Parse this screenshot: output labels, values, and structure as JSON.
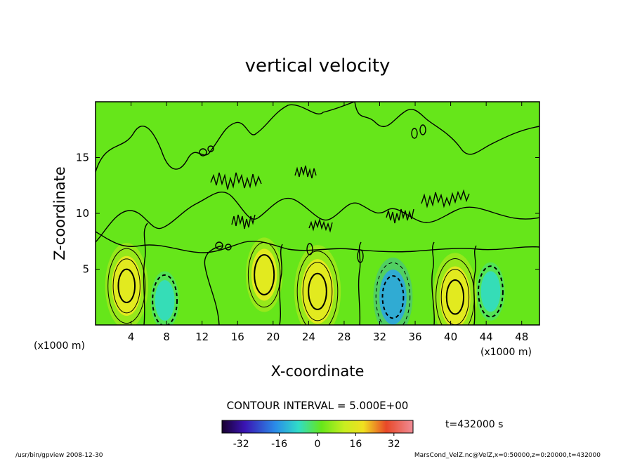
{
  "chart_data": {
    "type": "heatmap",
    "title": "vertical velocity",
    "xlabel": "X-coordinate",
    "ylabel": "Z-coordinate",
    "x_unit_left": "(x1000 m)",
    "x_unit_right": "(x1000 m)",
    "xlim": [
      0,
      50
    ],
    "ylim": [
      0,
      20
    ],
    "x_ticks": [
      4,
      8,
      12,
      16,
      20,
      24,
      28,
      32,
      36,
      40,
      44,
      48
    ],
    "y_ticks": [
      5,
      10,
      15
    ],
    "contour_interval_label": "CONTOUR INTERVAL = 5.000E+00",
    "time_label": "t=432000 s",
    "colorbar": {
      "range": [
        -40,
        40
      ],
      "tick_values": [
        -32,
        -16,
        0,
        16,
        32
      ]
    },
    "features": [
      {
        "x": 3.5,
        "z": 3.5,
        "value": 15
      },
      {
        "x": 7.8,
        "z": 2.2,
        "value": -3
      },
      {
        "x": 19,
        "z": 4.5,
        "value": 10
      },
      {
        "x": 25,
        "z": 3,
        "value": 18
      },
      {
        "x": 33.5,
        "z": 2.5,
        "value": -12
      },
      {
        "x": 40.5,
        "z": 2.5,
        "value": 16
      },
      {
        "x": 44.5,
        "z": 3,
        "value": -3
      }
    ]
  },
  "footer": {
    "left": "/usr/bin/gpview   2008-12-30",
    "right": "MarsCond_VelZ.nc@VelZ,x=0:50000,z=0:20000,t=432000"
  },
  "colors": {
    "field_background": "#66e61a",
    "positive": "#f0ea20",
    "negative": "#30dcc8",
    "strong_negative": "#2aa4e8",
    "line": "#000000"
  }
}
